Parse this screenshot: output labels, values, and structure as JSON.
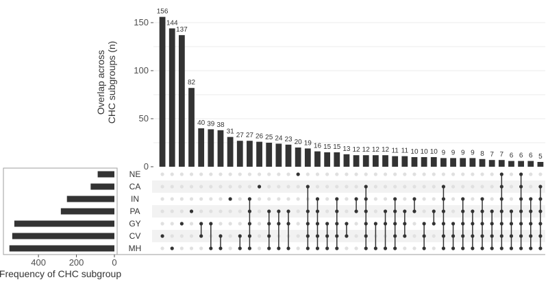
{
  "chart_data": {
    "type": "bar",
    "variant": "upset",
    "sets": [
      "NE",
      "CA",
      "IN",
      "PA",
      "GY",
      "CV",
      "MH"
    ],
    "set_sizes": [
      88,
      125,
      250,
      282,
      527,
      538,
      553
    ],
    "intersection_values": [
      156,
      144,
      137,
      82,
      40,
      39,
      38,
      31,
      27,
      27,
      26,
      25,
      24,
      23,
      20,
      19,
      16,
      15,
      15,
      13,
      12,
      12,
      12,
      12,
      11,
      11,
      10,
      10,
      10,
      9,
      9,
      9,
      9,
      8,
      7,
      7,
      6,
      6,
      6,
      5
    ],
    "intersections": [
      [
        "CV"
      ],
      [
        "MH"
      ],
      [
        "GY"
      ],
      [
        "PA"
      ],
      [
        "GY",
        "CV"
      ],
      [
        "GY",
        "MH"
      ],
      [
        "CV",
        "MH"
      ],
      [
        "IN"
      ],
      [
        "CV",
        "MH"
      ],
      [
        "IN",
        "PA",
        "GY",
        "CV",
        "MH"
      ],
      [
        "CA"
      ],
      [
        "PA",
        "GY",
        "CV",
        "MH"
      ],
      [
        "PA",
        "GY",
        "MH"
      ],
      [
        "PA",
        "GY",
        "MH"
      ],
      [
        "NE"
      ],
      [
        "CA",
        "PA",
        "GY",
        "CV",
        "MH"
      ],
      [
        "IN",
        "PA",
        "GY",
        "CV",
        "MH"
      ],
      [
        "GY",
        "CV",
        "MH"
      ],
      [
        "IN",
        "PA",
        "GY",
        "CV",
        "MH"
      ],
      [
        "GY",
        "CV"
      ],
      [
        "IN",
        "PA"
      ],
      [
        "CA",
        "IN",
        "PA",
        "GY",
        "CV",
        "MH"
      ],
      [
        "GY",
        "MH"
      ],
      [
        "PA",
        "GY",
        "MH"
      ],
      [
        "IN",
        "PA",
        "GY",
        "CV",
        "MH"
      ],
      [
        "PA",
        "GY",
        "CV"
      ],
      [
        "IN",
        "PA"
      ],
      [
        "GY",
        "CV",
        "MH"
      ],
      [
        "PA",
        "GY"
      ],
      [
        "CA",
        "IN",
        "PA",
        "GY",
        "CV",
        "MH"
      ],
      [
        "GY",
        "CV",
        "MH"
      ],
      [
        "IN",
        "PA",
        "GY",
        "CV",
        "MH"
      ],
      [
        "PA",
        "GY",
        "CV",
        "MH"
      ],
      [
        "IN",
        "PA",
        "GY",
        "CV",
        "MH"
      ],
      [
        "PA",
        "GY",
        "CV",
        "MH"
      ],
      [
        "NE",
        "CA",
        "IN",
        "PA",
        "GY",
        "CV",
        "MH"
      ],
      [
        "PA",
        "GY",
        "CV",
        "MH"
      ],
      [
        "NE",
        "CA",
        "IN",
        "PA",
        "GY",
        "CV",
        "MH"
      ],
      [
        "IN",
        "PA",
        "GY",
        "CV",
        "MH"
      ],
      [
        "CA",
        "IN",
        "PA",
        "GY",
        "CV",
        "MH"
      ]
    ],
    "ylabel": [
      "Overlap across",
      "CHC subgroups (n)"
    ],
    "yticks": [
      0,
      50,
      100,
      150
    ],
    "ylim": [
      0,
      165
    ],
    "set_size_label": "Frequency of CHC subgroup",
    "set_size_ticks": [
      400,
      200,
      0
    ],
    "set_size_lim": [
      0,
      570
    ],
    "grid": true,
    "colors": {
      "bar": "#333333",
      "dot_active": "#333333",
      "dot_inactive": "#e0e0e0",
      "stripe": "#f2f2f2",
      "grid": "#ebebeb",
      "text": "#4d4d4d"
    }
  }
}
